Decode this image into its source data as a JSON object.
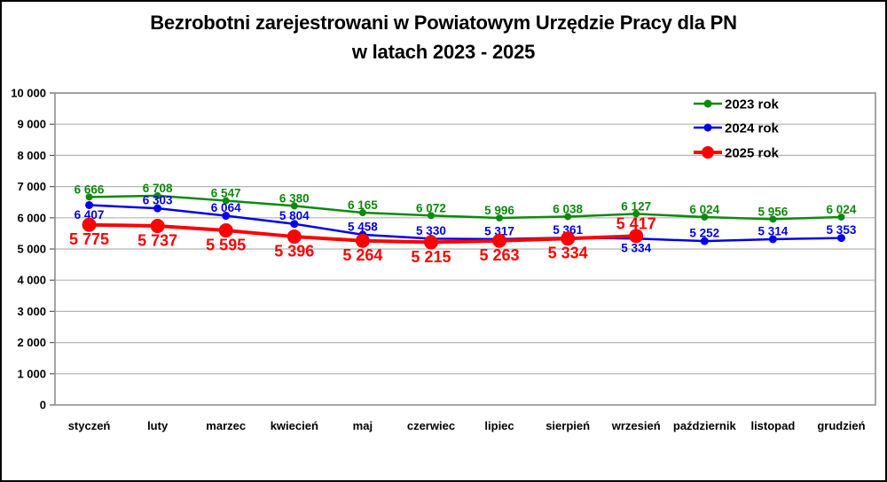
{
  "colors": {
    "background": "#FFFFFF",
    "frame_border": "#000000",
    "plot_border": "#8F8F8F",
    "gridline": "#B3B3B3",
    "axis_tick": "#595959",
    "text": "#000000"
  },
  "chart_data": {
    "type": "line",
    "title": "Bezrobotni zarejestrowani w Powiatowym Urzędzie Pracy dla PN",
    "subtitle": "w latach 2023 - 2025",
    "categories": [
      "styczeń",
      "luty",
      "marzec",
      "kwiecień",
      "maj",
      "czerwiec",
      "lipiec",
      "sierpień",
      "wrzesień",
      "październik",
      "listopad",
      "grudzień"
    ],
    "ylim": [
      0,
      10000
    ],
    "y_tick_step": 1000,
    "y_tick_labels": [
      "0",
      "1 000",
      "2 000",
      "3 000",
      "4 000",
      "5 000",
      "6 000",
      "7 000",
      "8 000",
      "9 000",
      "10 000"
    ],
    "grid": "horizontal",
    "legend_position": "top-right",
    "series": [
      {
        "name": "2023 rok",
        "color": "#0B8A0B",
        "line_width": 2.5,
        "marker_radius": 4,
        "label_font_size": 13.5,
        "values": [
          6666,
          6708,
          6547,
          6380,
          6165,
          6072,
          5996,
          6038,
          6127,
          6024,
          5956,
          6024
        ],
        "label_positions": [
          "above",
          "above",
          "above",
          "above",
          "above",
          "above",
          "above",
          "above",
          "above",
          "above",
          "above",
          "above"
        ]
      },
      {
        "name": "2024 rok",
        "color": "#0000EE",
        "line_width": 2.5,
        "marker_radius": 4.5,
        "label_font_size": 13.5,
        "values": [
          6407,
          6303,
          6064,
          5804,
          5458,
          5330,
          5317,
          5361,
          5334,
          5252,
          5314,
          5353
        ],
        "label_positions": [
          "below",
          "above",
          "above",
          "above",
          "above",
          "above",
          "above",
          "above",
          "below",
          "above",
          "above",
          "above"
        ]
      },
      {
        "name": "2025 rok",
        "color": "#FF0000",
        "line_width": 4,
        "marker_radius": 8,
        "label_font_size": 18,
        "values": [
          5775,
          5737,
          5595,
          5396,
          5264,
          5215,
          5263,
          5334,
          5417
        ],
        "label_positions": [
          "below",
          "below",
          "below",
          "below",
          "below",
          "below",
          "below",
          "below",
          "above"
        ]
      }
    ]
  }
}
